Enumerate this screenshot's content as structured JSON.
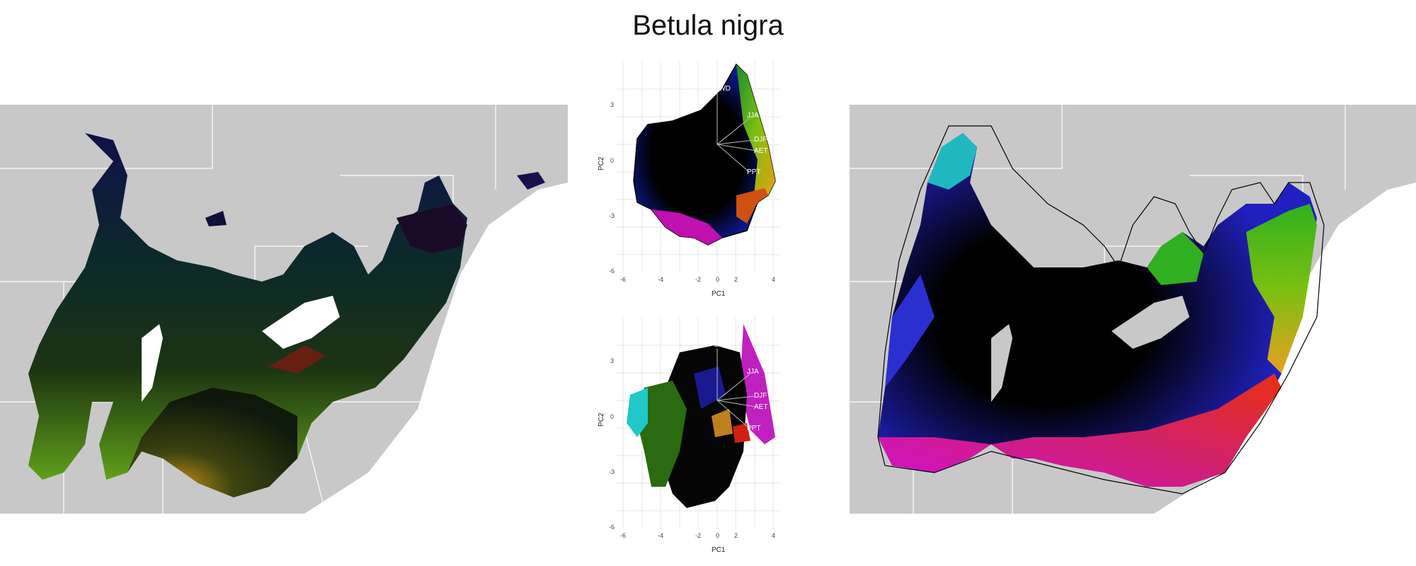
{
  "title": "Betula nigra",
  "pca": {
    "x_label": "PC1",
    "y_label": "PC2",
    "x_ticks": [
      "-6",
      "-4",
      "-2",
      "0",
      "2",
      "4"
    ],
    "y_ticks": [
      "3",
      "0",
      "-3",
      "-6"
    ],
    "loadings": [
      "CWD",
      "JJA",
      "DJF",
      "AET",
      "PPT"
    ]
  },
  "colors": {
    "land": "#c8c8c8",
    "background": "#ffffff",
    "boundary": "#ffffff"
  }
}
